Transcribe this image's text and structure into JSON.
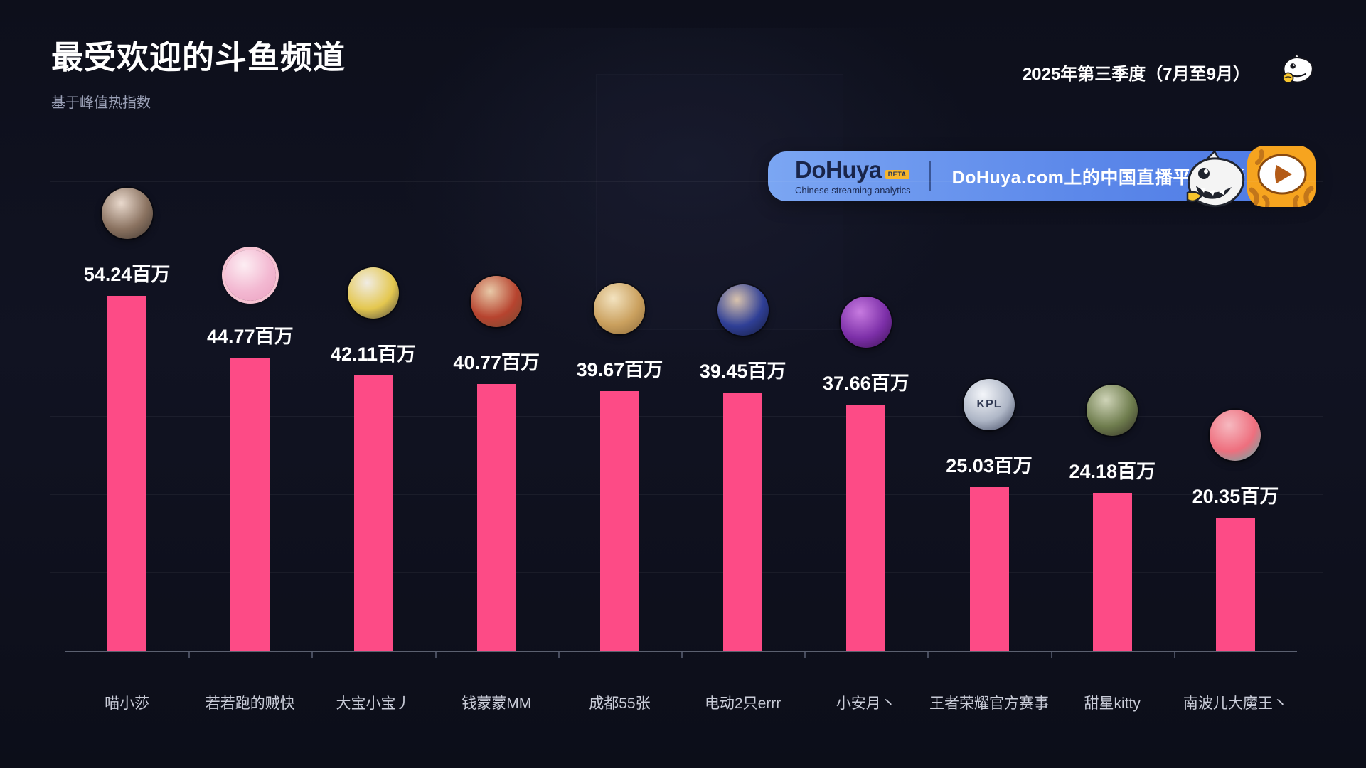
{
  "header": {
    "title": "最受欢迎的斗鱼频道",
    "subtitle": "基于峰值热指数",
    "period": "2025年第三季度（7月至9月）",
    "logo_icon": "douyu-shark-icon"
  },
  "banner": {
    "brand": "DoHuya",
    "beta": "BETA",
    "tagline": "Chinese streaming analytics",
    "message": "DoHuya.com上的中国直播平台分析",
    "icons": [
      "shark-mascot-icon",
      "huya-play-logo"
    ],
    "colors": {
      "gradient_start": "#7ba6f3",
      "gradient_end": "#4c79e4",
      "beta_bg": "#f6b62c",
      "brand_text": "#19254a"
    }
  },
  "chart_data": {
    "type": "bar",
    "title": "最受欢迎的斗鱼频道",
    "subtitle": "基于峰值热指数",
    "unit": "百万",
    "ylim": [
      0,
      60
    ],
    "grid": "faint-horizontal",
    "legend": false,
    "bar_color": "#fd4b86",
    "axis_color": "#5b6070",
    "categories": [
      "喵小莎",
      "若若跑的贼快",
      "大宝小宝丿",
      "钱蒙蒙MM",
      "成都55张",
      "电动2只errr",
      "小安月丶",
      "王者荣耀官方赛事",
      "甜星kitty",
      "南波儿大魔王丶"
    ],
    "values": [
      54.24,
      44.77,
      42.11,
      40.77,
      39.67,
      39.45,
      37.66,
      25.03,
      24.18,
      20.35
    ],
    "value_labels": [
      "54.24百万",
      "44.77百万",
      "42.11百万",
      "40.77百万",
      "39.67百万",
      "39.45百万",
      "37.66百万",
      "25.03百万",
      "24.18百万",
      "20.35百万"
    ],
    "avatars": [
      {
        "text": "",
        "ring": "",
        "colors": [
          "#e9d9cd",
          "#8a7260",
          "#3c342e"
        ]
      },
      {
        "text": "",
        "ring": "#f6c3d2",
        "colors": [
          "#fdeef3",
          "#f3b9d2",
          "#eba0c0"
        ]
      },
      {
        "text": "",
        "ring": "",
        "colors": [
          "#f0ece4",
          "#e4c74f",
          "#474340"
        ]
      },
      {
        "text": "",
        "ring": "",
        "colors": [
          "#e8c9a8",
          "#b7442f",
          "#6e4a33"
        ]
      },
      {
        "text": "",
        "ring": "",
        "colors": [
          "#f3e3c0",
          "#caa05e",
          "#8a6838"
        ]
      },
      {
        "text": "",
        "ring": "",
        "colors": [
          "#d9c3ad",
          "#2f3f96",
          "#141a38"
        ]
      },
      {
        "text": "",
        "ring": "",
        "colors": [
          "#c77be0",
          "#7c2fa8",
          "#3a1150"
        ]
      },
      {
        "text": "KPL",
        "ring": "",
        "colors": [
          "#f4f6fa",
          "#aeb6c6",
          "#39415a"
        ]
      },
      {
        "text": "",
        "ring": "",
        "colors": [
          "#cfd4b8",
          "#6f7d4e",
          "#2e2a22"
        ]
      },
      {
        "text": "",
        "ring": "",
        "colors": [
          "#f6b9c0",
          "#ee6f7e",
          "#4fb8b0"
        ]
      }
    ]
  }
}
